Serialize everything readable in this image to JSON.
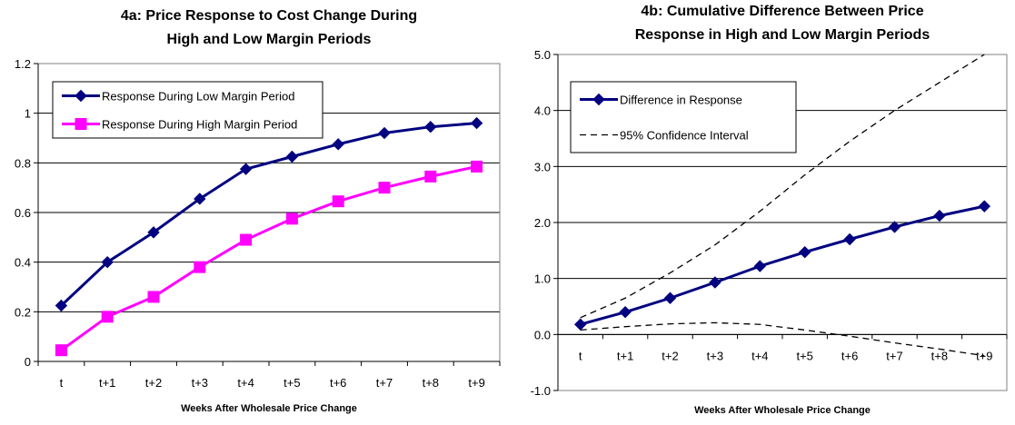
{
  "chart_data": [
    {
      "id": "a",
      "type": "line",
      "title": [
        "4a: Price Response to Cost Change During",
        "High and Low Margin Periods"
      ],
      "xlabel": "Weeks After Wholesale Price Change",
      "ylabel": "",
      "categories": [
        "t",
        "t+1",
        "t+2",
        "t+3",
        "t+4",
        "t+5",
        "t+6",
        "t+7",
        "t+8",
        "t+9"
      ],
      "ylim": [
        0,
        1.2
      ],
      "yticks": [
        0,
        0.2,
        0.4,
        0.6,
        0.8,
        1,
        1.2
      ],
      "ytick_labels": [
        "0",
        "0.2",
        "0.4",
        "0.6",
        "0.8",
        "1",
        "1.2"
      ],
      "grid": true,
      "legend": "top-left",
      "series": [
        {
          "name": "Response During Low Margin Period",
          "color": "#000080",
          "marker": "diamond",
          "dash": "solid",
          "values": [
            0.225,
            0.4,
            0.52,
            0.655,
            0.775,
            0.825,
            0.875,
            0.92,
            0.945,
            0.96
          ]
        },
        {
          "name": "Response During High Margin Period",
          "color": "#FF00FF",
          "marker": "square",
          "dash": "solid",
          "values": [
            0.045,
            0.18,
            0.26,
            0.38,
            0.49,
            0.575,
            0.645,
            0.7,
            0.745,
            0.785
          ]
        }
      ]
    },
    {
      "id": "b",
      "type": "line",
      "title": [
        "4b: Cumulative Difference Between Price",
        "Response in High and Low Margin Periods"
      ],
      "xlabel": "Weeks After Wholesale Price Change",
      "ylabel": "",
      "categories": [
        "t",
        "t+1",
        "t+2",
        "t+3",
        "t+4",
        "t+5",
        "t+6",
        "t+7",
        "t+8",
        "t+9"
      ],
      "ylim": [
        -1.0,
        5.0
      ],
      "yticks": [
        -1,
        0,
        1,
        2,
        3,
        4,
        5
      ],
      "ytick_labels": [
        "-1.0",
        "0.0",
        "1.0",
        "2.0",
        "3.0",
        "4.0",
        "5.0"
      ],
      "grid": true,
      "legend": "top-left",
      "series": [
        {
          "name": "Difference in Response",
          "color": "#000080",
          "marker": "diamond",
          "dash": "solid",
          "values": [
            0.18,
            0.4,
            0.65,
            0.93,
            1.22,
            1.47,
            1.7,
            1.92,
            2.12,
            2.29
          ]
        },
        {
          "name": "95% Confidence Interval",
          "color": "#000000",
          "marker": "none",
          "dash": "dashed",
          "values": [
            0.3,
            0.65,
            1.1,
            1.6,
            2.2,
            2.85,
            3.45,
            4.0,
            4.5,
            5.0
          ]
        },
        {
          "name": "",
          "color": "#000000",
          "marker": "none",
          "dash": "dashed",
          "in_legend": false,
          "values": [
            0.08,
            0.14,
            0.19,
            0.21,
            0.18,
            0.08,
            -0.03,
            -0.15,
            -0.26,
            -0.38
          ]
        }
      ]
    }
  ]
}
